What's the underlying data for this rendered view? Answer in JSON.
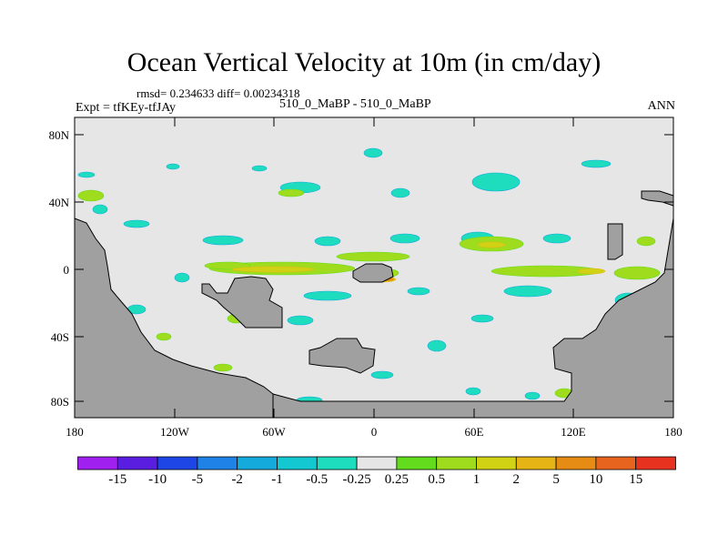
{
  "title": "Ocean Vertical Velocity at 10m (in cm/day)",
  "subtitle": {
    "rmsd_line": "rmsd= 0.234633 diff= 0.00234318",
    "experiment": "Expt = tfKEy-tfJAy",
    "case": "510_0_MaBP - 510_0_MaBP",
    "season": "ANN"
  },
  "axes": {
    "lon_ticks": [
      "180",
      "120W",
      "60W",
      "0",
      "60E",
      "120E",
      "180"
    ],
    "lat_ticks": [
      "80N",
      "40N",
      "0",
      "40S",
      "80S"
    ]
  },
  "colorbar": {
    "labels": [
      "-15",
      "-10",
      "-5",
      "-2",
      "-1",
      "-0.5",
      "-0.25",
      "0.25",
      "0.5",
      "1",
      "2",
      "5",
      "10",
      "15"
    ],
    "colors": [
      "#a020f0",
      "#5a1ee0",
      "#1e46e6",
      "#1e82e6",
      "#14aadc",
      "#14c8d2",
      "#1edcbe",
      "#e6e6e6",
      "#64dc1e",
      "#a0dc1e",
      "#d2d214",
      "#e6b414",
      "#e68c14",
      "#e6641e",
      "#e6321e"
    ]
  },
  "map_colors": {
    "ocean": "#e6e6e6",
    "land": "#a0a0a0"
  }
}
